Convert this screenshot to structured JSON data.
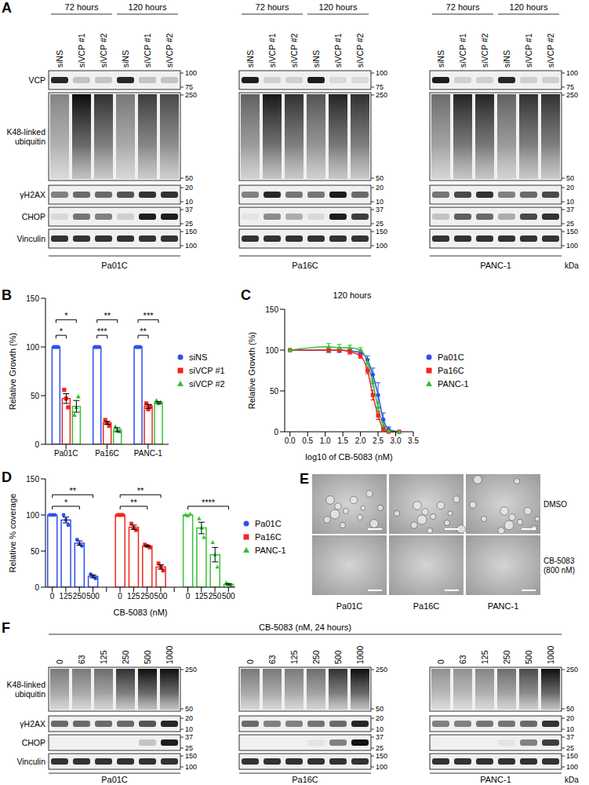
{
  "A": {
    "label": "A",
    "time_groups": [
      "72 hours",
      "120 hours"
    ],
    "lanes": [
      "siNS",
      "siVCP #1",
      "siVCP #2"
    ],
    "unit": "kDa",
    "rows": [
      {
        "name": "VCP",
        "markers": [
          100,
          75
        ]
      },
      {
        "name": "K48-linked ubiquitin",
        "markers": [
          250,
          50
        ]
      },
      {
        "name": "γH2AX",
        "markers": [
          20,
          10
        ]
      },
      {
        "name": "CHOP",
        "markers": [
          37,
          25
        ]
      },
      {
        "name": "Vinculin",
        "markers": [
          150,
          100
        ]
      }
    ],
    "blots": [
      {
        "cell_line": "Pa01C",
        "band_intensity": [
          [
            0.9,
            0.2,
            0.2,
            0.9,
            0.2,
            0.2
          ],
          [
            0.45,
            0.95,
            0.8,
            0.5,
            0.75,
            0.7
          ],
          [
            0.5,
            0.6,
            0.6,
            0.7,
            0.85,
            0.85
          ],
          [
            0.1,
            0.55,
            0.5,
            0.15,
            0.95,
            0.95
          ],
          [
            0.85,
            0.85,
            0.85,
            0.85,
            0.85,
            0.85
          ]
        ]
      },
      {
        "cell_line": "Pa16C",
        "band_intensity": [
          [
            0.95,
            0.15,
            0.15,
            0.95,
            0.1,
            0.1
          ],
          [
            0.6,
            0.9,
            0.8,
            0.65,
            0.85,
            0.8
          ],
          [
            0.5,
            0.9,
            0.55,
            0.55,
            0.95,
            0.6
          ],
          [
            0.05,
            0.45,
            0.3,
            0.1,
            0.95,
            0.8
          ],
          [
            0.85,
            0.85,
            0.85,
            0.85,
            0.85,
            0.85
          ]
        ]
      },
      {
        "cell_line": "PANC-1",
        "band_intensity": [
          [
            0.95,
            0.15,
            0.15,
            0.9,
            0.15,
            0.15
          ],
          [
            0.55,
            0.85,
            0.85,
            0.6,
            0.8,
            0.8
          ],
          [
            0.55,
            0.75,
            0.85,
            0.5,
            0.6,
            0.75
          ],
          [
            0.2,
            0.65,
            0.6,
            0.3,
            0.75,
            0.85
          ],
          [
            0.85,
            0.85,
            0.85,
            0.85,
            0.85,
            0.85
          ]
        ]
      }
    ]
  },
  "chart_data": [
    {
      "panel": "B",
      "type": "bar",
      "categories": [
        "Pa01C",
        "Pa16C",
        "PANC-1"
      ],
      "ylabel": "Relative Growth (%)",
      "ylim": [
        0,
        150
      ],
      "yticks": [
        0,
        50,
        100,
        150
      ],
      "legend": "right",
      "series": [
        {
          "name": "siNS",
          "color": "#2e4ff0",
          "marker": "circle",
          "values": [
            100,
            100,
            100
          ],
          "errors": [
            0,
            0,
            0
          ],
          "points": [
            [
              100,
              100,
              100
            ],
            [
              100,
              100,
              100
            ],
            [
              100,
              100,
              100
            ]
          ]
        },
        {
          "name": "siVCP #1",
          "color": "#f0261e",
          "marker": "square",
          "values": [
            47,
            22,
            39
          ],
          "errors": [
            5,
            1.5,
            2
          ],
          "points": [
            [
              56,
              47,
              38
            ],
            [
              25,
              22,
              19
            ],
            [
              42,
              36,
              39
            ]
          ]
        },
        {
          "name": "siVCP #2",
          "color": "#35c235",
          "marker": "triangle",
          "values": [
            39,
            15,
            43
          ],
          "errors": [
            6,
            2,
            1
          ],
          "points": [
            [
              30,
              38,
              49
            ],
            [
              18,
              14,
              13
            ],
            [
              45,
              42,
              43
            ]
          ]
        }
      ],
      "significance": [
        {
          "category": "Pa01C",
          "series": "siVCP #1",
          "label": "*"
        },
        {
          "category": "Pa01C",
          "series": "siVCP #2",
          "label": "*"
        },
        {
          "category": "Pa16C",
          "series": "siVCP #1",
          "label": "***"
        },
        {
          "category": "Pa16C",
          "series": "siVCP #2",
          "label": "**"
        },
        {
          "category": "PANC-1",
          "series": "siVCP #1",
          "label": "**"
        },
        {
          "category": "PANC-1",
          "series": "siVCP #2",
          "label": "***"
        }
      ]
    },
    {
      "panel": "C",
      "type": "line",
      "title": "120 hours",
      "xlabel": "log10 of CB-5083 (nM)",
      "ylabel": "Relative Growth (%)",
      "x": [
        0,
        1.1,
        1.4,
        1.7,
        2,
        2.2,
        2.35,
        2.5,
        2.65,
        2.8,
        3.1
      ],
      "xlim": [
        -0.15,
        3.5
      ],
      "xticks": [
        {
          "value": 0,
          "label": "0.0"
        },
        0.5,
        {
          "value": 1,
          "label": "1.0"
        },
        1.5,
        {
          "value": 2,
          "label": "2.0"
        },
        2.5,
        {
          "value": 3,
          "label": "3.0"
        },
        3.5
      ],
      "ylim": [
        0,
        150
      ],
      "yticks": [
        0,
        50,
        100,
        150
      ],
      "legend": "right",
      "series": [
        {
          "name": "Pa01C",
          "color": "#2e4ff0",
          "marker": "circle",
          "values": [
            100,
            100,
            100,
            99,
            97,
            88,
            70,
            45,
            15,
            3,
            0
          ],
          "errors": [
            0,
            3,
            3,
            2,
            3,
            5,
            8,
            15,
            8,
            3,
            0
          ]
        },
        {
          "name": "Pa16C",
          "color": "#f0261e",
          "marker": "square",
          "values": [
            100,
            100,
            100,
            98,
            93,
            75,
            45,
            20,
            3,
            0,
            0
          ],
          "errors": [
            0,
            2,
            2,
            3,
            3,
            4,
            6,
            5,
            2,
            0,
            0
          ]
        },
        {
          "name": "PANC-1",
          "color": "#35c235",
          "marker": "triangle",
          "values": [
            100,
            104,
            103,
            103,
            100,
            85,
            60,
            30,
            8,
            1,
            0
          ],
          "errors": [
            0,
            4,
            4,
            3,
            3,
            4,
            5,
            6,
            3,
            1,
            0
          ]
        }
      ]
    },
    {
      "panel": "D",
      "type": "bar",
      "categories": [
        "0",
        "125",
        "250",
        "500"
      ],
      "xlabel": "CB-5083 (nM)",
      "ylabel": "Relative % coverage",
      "ylim": [
        0,
        150
      ],
      "yticks": [
        0,
        50,
        100,
        150
      ],
      "legend": "right",
      "series": [
        {
          "name": "Pa01C",
          "color": "#2e4ff0",
          "marker": "circle",
          "values": [
            100,
            93,
            61,
            15
          ],
          "errors": [
            0,
            4,
            3,
            2
          ],
          "points": [
            [
              100,
              100,
              100
            ],
            [
              100,
              93,
              86
            ],
            [
              66,
              60,
              57
            ],
            [
              18,
              15,
              12
            ]
          ]
        },
        {
          "name": "Pa16C",
          "color": "#f0261e",
          "marker": "square",
          "values": [
            100,
            83,
            57,
            28
          ],
          "errors": [
            0,
            3,
            1,
            3
          ],
          "points": [
            [
              100,
              100,
              100
            ],
            [
              88,
              82,
              79
            ],
            [
              59,
              57,
              55
            ],
            [
              33,
              28,
              23
            ]
          ]
        },
        {
          "name": "PANC-1",
          "color": "#35c235",
          "marker": "triangle",
          "values": [
            100,
            82,
            45,
            4
          ],
          "errors": [
            0,
            8,
            10,
            1
          ],
          "points": [
            [
              100,
              99,
              101
            ],
            [
              95,
              82,
              69
            ],
            [
              62,
              45,
              28
            ],
            [
              6,
              4,
              2
            ]
          ]
        }
      ],
      "significance": [
        {
          "series": "Pa01C",
          "category": "250",
          "label": "*"
        },
        {
          "series": "Pa01C",
          "category": "500",
          "label": "**"
        },
        {
          "series": "Pa16C",
          "category": "250",
          "label": "**"
        },
        {
          "series": "Pa16C",
          "category": "500",
          "label": "**"
        },
        {
          "series": "PANC-1",
          "category": "500",
          "label": "****"
        }
      ]
    }
  ],
  "E": {
    "label": "E",
    "conditions": [
      [
        "DMSO"
      ],
      [
        "CB-5083",
        "(800 nM)"
      ]
    ],
    "cell_lines": [
      "Pa01C",
      "Pa16C",
      "PANC-1"
    ]
  },
  "F": {
    "label": "F",
    "title": "CB-5083 (nM, 24 hours)",
    "lanes": [
      0,
      63,
      125,
      250,
      500,
      1000
    ],
    "unit": "kDa",
    "rows": [
      {
        "name": "K48-linked ubiquitin",
        "markers": [
          250,
          50
        ]
      },
      {
        "name": "γH2AX",
        "markers": [
          20,
          10
        ]
      },
      {
        "name": "CHOP",
        "markers": [
          37,
          25
        ]
      },
      {
        "name": "Vinculin",
        "markers": [
          150,
          100
        ]
      }
    ],
    "blots": [
      {
        "cell_line": "Pa01C",
        "band_intensity": [
          [
            0.5,
            0.5,
            0.55,
            0.8,
            0.95,
            0.95
          ],
          [
            0.6,
            0.6,
            0.6,
            0.6,
            0.7,
            0.9
          ],
          [
            0,
            0,
            0,
            0,
            0.2,
            0.95
          ],
          [
            0.85,
            0.85,
            0.85,
            0.85,
            0.85,
            0.85
          ]
        ]
      },
      {
        "cell_line": "Pa16C",
        "band_intensity": [
          [
            0.5,
            0.5,
            0.5,
            0.55,
            0.8,
            0.95
          ],
          [
            0.6,
            0.5,
            0.5,
            0.55,
            0.6,
            0.9
          ],
          [
            0,
            0,
            0,
            0.05,
            0.5,
            1
          ],
          [
            0.85,
            0.85,
            0.85,
            0.85,
            0.85,
            0.85
          ]
        ]
      },
      {
        "cell_line": "PANC-1",
        "band_intensity": [
          [
            0.4,
            0.4,
            0.45,
            0.55,
            0.7,
            0.95
          ],
          [
            0.5,
            0.5,
            0.55,
            0.55,
            0.6,
            0.85
          ],
          [
            0,
            0,
            0,
            0.05,
            0.5,
            0.8
          ],
          [
            0.85,
            0.85,
            0.85,
            0.85,
            0.85,
            0.85
          ]
        ]
      }
    ]
  }
}
